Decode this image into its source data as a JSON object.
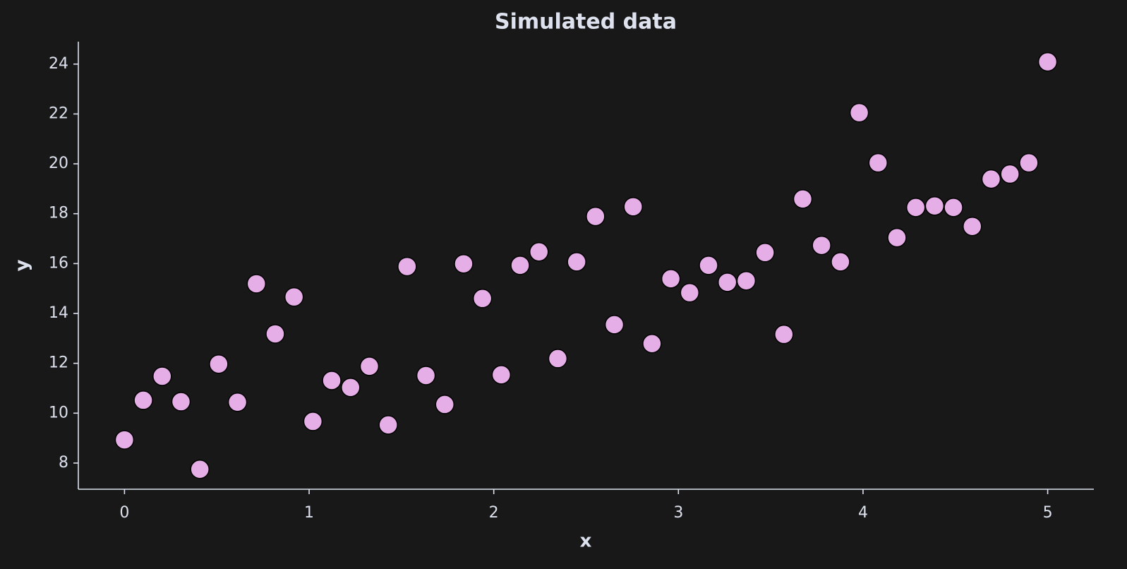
{
  "chart_data": {
    "type": "scatter",
    "title": "Simulated data",
    "x_label": "x",
    "y_label": "y",
    "series": [
      {
        "color": "#e6aee6",
        "x": [
          0,
          0.102,
          0.2041,
          0.3061,
          0.4082,
          0.5102,
          0.6122,
          0.7143,
          0.8163,
          0.9184,
          1.0204,
          1.1224,
          1.2245,
          1.3265,
          1.4286,
          1.5306,
          1.6327,
          1.7347,
          1.8367,
          1.9388,
          2.0408,
          2.1429,
          2.2449,
          2.3469,
          2.449,
          2.551,
          2.6531,
          2.7551,
          2.8571,
          2.9592,
          3.0612,
          3.1633,
          3.2653,
          3.3673,
          3.4694,
          3.5714,
          3.6735,
          3.7755,
          3.8776,
          3.9796,
          4.0816,
          4.1837,
          4.2857,
          4.3878,
          4.4898,
          4.5918,
          4.6939,
          4.7959,
          4.898,
          5
        ],
        "values": [
          8.93,
          10.52,
          11.48,
          10.46,
          7.75,
          11.97,
          10.44,
          15.19,
          13.18,
          14.66,
          9.67,
          11.31,
          11.03,
          11.88,
          9.53,
          15.88,
          11.51,
          10.35,
          15.99,
          14.6,
          11.54,
          15.93,
          16.47,
          12.19,
          16.07,
          17.89,
          13.55,
          18.28,
          12.79,
          15.39,
          14.83,
          15.93,
          15.25,
          15.31,
          16.44,
          13.16,
          18.59,
          16.73,
          16.07,
          22.05,
          20.04,
          17.04,
          18.25,
          18.31,
          18.25,
          17.49,
          19.39,
          19.59,
          20.04,
          24.09
        ]
      }
    ],
    "xlim": [
      -0.25,
      5.25
    ],
    "xticks": [
      0,
      1,
      2,
      3,
      4,
      5
    ],
    "ylim": [
      6.95,
      24.9
    ],
    "yticks": [
      8,
      10,
      12,
      14,
      16,
      18,
      20,
      22,
      24
    ]
  }
}
